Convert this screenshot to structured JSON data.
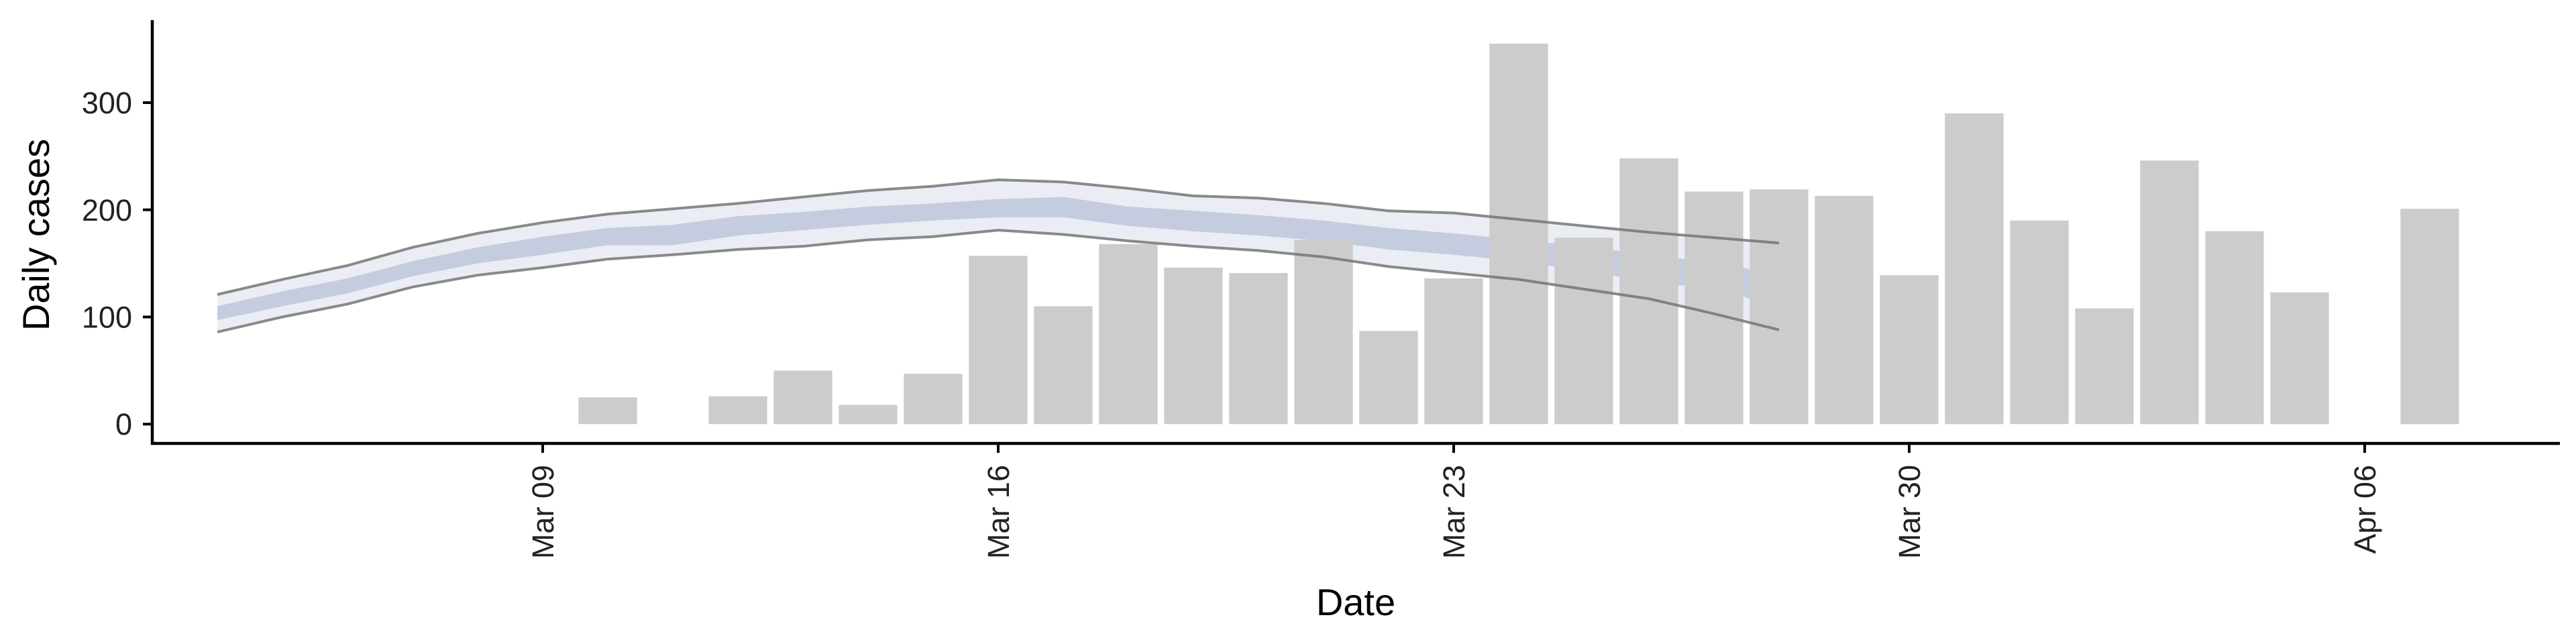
{
  "chart_data": {
    "type": "bar",
    "xlabel": "Date",
    "ylabel": "Daily cases",
    "x_ticks": [
      {
        "date": "2020-03-09",
        "label": "Mar 09"
      },
      {
        "date": "2020-03-16",
        "label": "Mar 16"
      },
      {
        "date": "2020-03-23",
        "label": "Mar 23"
      },
      {
        "date": "2020-03-30",
        "label": "Mar 30"
      },
      {
        "date": "2020-04-06",
        "label": "Apr 06"
      }
    ],
    "y_ticks": [
      0,
      100,
      200,
      300
    ],
    "xlim": [
      "2020-03-03",
      "2020-04-09"
    ],
    "ylim": [
      -18,
      377
    ],
    "grid": false,
    "bar_color": "#cccccc",
    "bars": [
      {
        "date": "2020-03-10",
        "value": 25
      },
      {
        "date": "2020-03-12",
        "value": 26
      },
      {
        "date": "2020-03-13",
        "value": 50
      },
      {
        "date": "2020-03-14",
        "value": 18
      },
      {
        "date": "2020-03-15",
        "value": 47
      },
      {
        "date": "2020-03-16",
        "value": 157
      },
      {
        "date": "2020-03-17",
        "value": 110
      },
      {
        "date": "2020-03-18",
        "value": 168
      },
      {
        "date": "2020-03-19",
        "value": 146
      },
      {
        "date": "2020-03-20",
        "value": 141
      },
      {
        "date": "2020-03-21",
        "value": 172
      },
      {
        "date": "2020-03-22",
        "value": 87
      },
      {
        "date": "2020-03-23",
        "value": 136
      },
      {
        "date": "2020-03-24",
        "value": 355
      },
      {
        "date": "2020-03-25",
        "value": 174
      },
      {
        "date": "2020-03-26",
        "value": 248
      },
      {
        "date": "2020-03-27",
        "value": 217
      },
      {
        "date": "2020-03-28",
        "value": 219
      },
      {
        "date": "2020-03-29",
        "value": 213
      },
      {
        "date": "2020-03-30",
        "value": 139
      },
      {
        "date": "2020-03-31",
        "value": 290
      },
      {
        "date": "2020-04-01",
        "value": 190
      },
      {
        "date": "2020-04-02",
        "value": 108
      },
      {
        "date": "2020-04-03",
        "value": 246
      },
      {
        "date": "2020-04-04",
        "value": 180
      },
      {
        "date": "2020-04-05",
        "value": 123
      },
      {
        "date": "2020-04-07",
        "value": 201
      }
    ],
    "bands": {
      "outer_color": "#c5cbdf",
      "inner_color": "#b6bed6",
      "outline_color": "#6e6e6e",
      "points": [
        {
          "date": "2020-03-04",
          "lo90": 86,
          "hi90": 121,
          "lo50": 97,
          "hi50": 110
        },
        {
          "date": "2020-03-05",
          "lo90": 100,
          "hi90": 135,
          "lo50": 110,
          "hi50": 124
        },
        {
          "date": "2020-03-06",
          "lo90": 112,
          "hi90": 148,
          "lo50": 122,
          "hi50": 136
        },
        {
          "date": "2020-03-07",
          "lo90": 128,
          "hi90": 165,
          "lo50": 138,
          "hi50": 152
        },
        {
          "date": "2020-03-08",
          "lo90": 139,
          "hi90": 178,
          "lo50": 150,
          "hi50": 165
        },
        {
          "date": "2020-03-09",
          "lo90": 146,
          "hi90": 188,
          "lo50": 158,
          "hi50": 175
        },
        {
          "date": "2020-03-10",
          "lo90": 154,
          "hi90": 196,
          "lo50": 167,
          "hi50": 183
        },
        {
          "date": "2020-03-11",
          "lo90": 158,
          "hi90": 201,
          "lo50": 167,
          "hi50": 186
        },
        {
          "date": "2020-03-12",
          "lo90": 163,
          "hi90": 206,
          "lo50": 176,
          "hi50": 194
        },
        {
          "date": "2020-03-13",
          "lo90": 166,
          "hi90": 212,
          "lo50": 181,
          "hi50": 198
        },
        {
          "date": "2020-03-14",
          "lo90": 172,
          "hi90": 218,
          "lo50": 186,
          "hi50": 203
        },
        {
          "date": "2020-03-15",
          "lo90": 175,
          "hi90": 222,
          "lo50": 190,
          "hi50": 206
        },
        {
          "date": "2020-03-16",
          "lo90": 181,
          "hi90": 228,
          "lo50": 193,
          "hi50": 210
        },
        {
          "date": "2020-03-17",
          "lo90": 177,
          "hi90": 226,
          "lo50": 193,
          "hi50": 212
        },
        {
          "date": "2020-03-18",
          "lo90": 171,
          "hi90": 220,
          "lo50": 185,
          "hi50": 203
        },
        {
          "date": "2020-03-19",
          "lo90": 166,
          "hi90": 213,
          "lo50": 180,
          "hi50": 199
        },
        {
          "date": "2020-03-20",
          "lo90": 162,
          "hi90": 211,
          "lo50": 176,
          "hi50": 195
        },
        {
          "date": "2020-03-21",
          "lo90": 156,
          "hi90": 206,
          "lo50": 171,
          "hi50": 190
        },
        {
          "date": "2020-03-22",
          "lo90": 147,
          "hi90": 199,
          "lo50": 163,
          "hi50": 183
        },
        {
          "date": "2020-03-23",
          "lo90": 141,
          "hi90": 197,
          "lo50": 158,
          "hi50": 178
        },
        {
          "date": "2020-03-24",
          "lo90": 135,
          "hi90": 191,
          "lo50": 152,
          "hi50": 172
        },
        {
          "date": "2020-03-25",
          "lo90": 126,
          "hi90": 185,
          "lo50": 143,
          "hi50": 166
        },
        {
          "date": "2020-03-26",
          "lo90": 117,
          "hi90": 179,
          "lo50": 133,
          "hi50": 158
        },
        {
          "date": "2020-03-27",
          "lo90": 103,
          "hi90": 174,
          "lo50": 126,
          "hi50": 151
        },
        {
          "date": "2020-03-28",
          "lo90": 88,
          "hi90": 169,
          "lo50": 110,
          "hi50": 140
        }
      ]
    }
  }
}
